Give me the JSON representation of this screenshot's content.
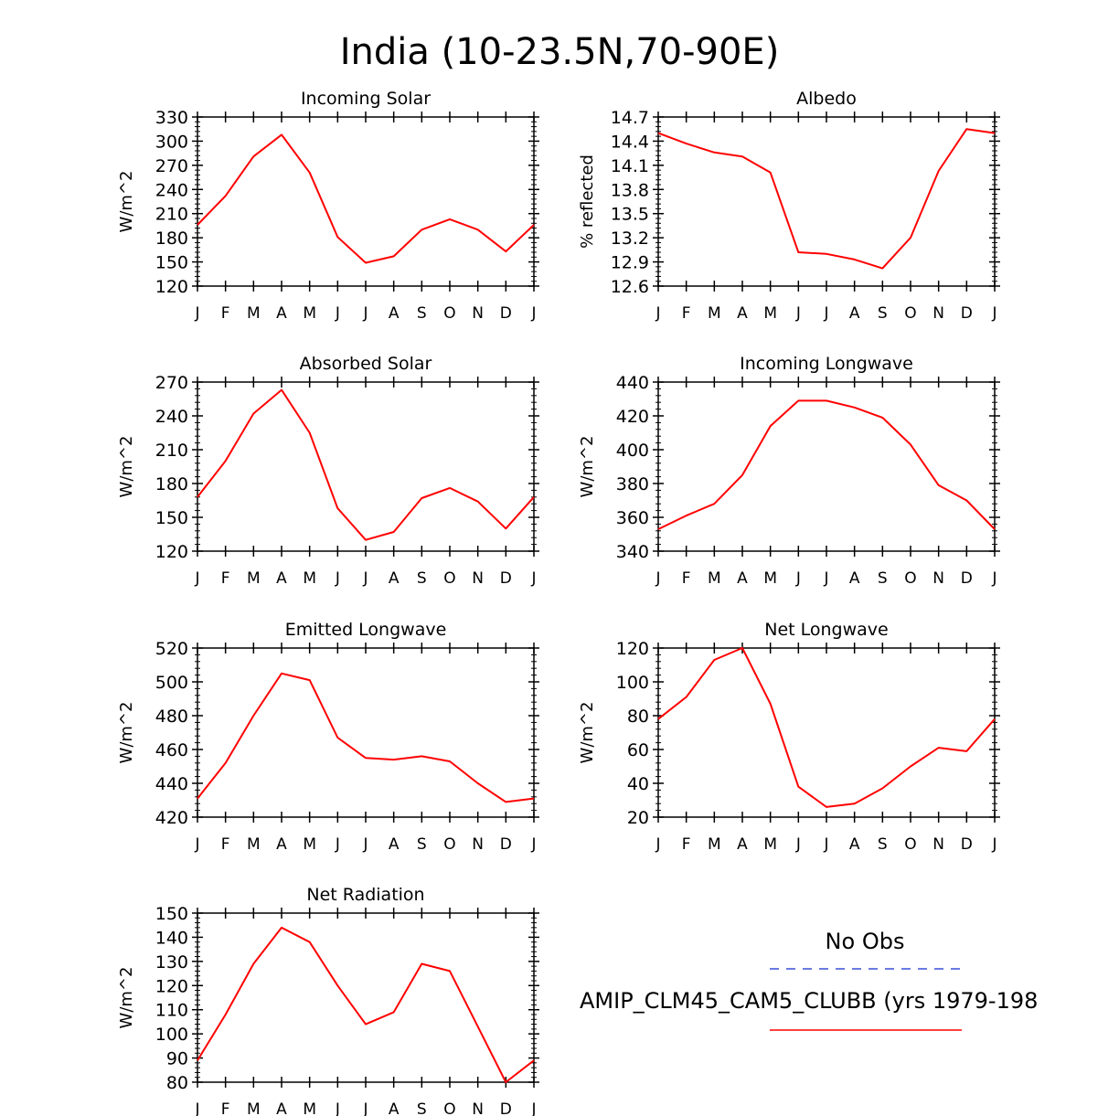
{
  "figure": {
    "title": "India (10-23.5N,70-90E)"
  },
  "legend": {
    "obs_label": "No Obs",
    "obs_color": "#3a4fd8",
    "model_label": "AMIP_CLM45_CAM5_CLUBB (yrs 1979-198",
    "model_color": "#ff0000"
  },
  "chart_data": [
    {
      "id": "incoming-solar",
      "type": "line",
      "title": "Incoming Solar",
      "ylabel": "W/m^2",
      "categories": [
        "J",
        "F",
        "M",
        "A",
        "M",
        "J",
        "J",
        "A",
        "S",
        "O",
        "N",
        "D",
        "J"
      ],
      "ylim": [
        120,
        330
      ],
      "yticks": [
        120,
        150,
        180,
        210,
        240,
        270,
        300,
        330
      ],
      "ytick_labels": [
        "120",
        "150",
        "180",
        "210",
        "240",
        "270",
        "300",
        "330"
      ],
      "series": [
        {
          "name": "AMIP_CLM45_CAM5_CLUBB",
          "color": "#ff0000",
          "values": [
            196,
            232,
            281,
            308,
            261,
            181,
            149,
            157,
            190,
            203,
            190,
            163,
            196
          ]
        }
      ]
    },
    {
      "id": "albedo",
      "type": "line",
      "title": "Albedo",
      "ylabel": "% reflected",
      "categories": [
        "J",
        "F",
        "M",
        "A",
        "M",
        "J",
        "J",
        "A",
        "S",
        "O",
        "N",
        "D",
        "J"
      ],
      "ylim": [
        12.6,
        14.7
      ],
      "yticks": [
        12.6,
        12.9,
        13.2,
        13.5,
        13.8,
        14.1,
        14.4,
        14.7
      ],
      "ytick_labels": [
        "12.6",
        "12.9",
        "13.2",
        "13.5",
        "13.8",
        "14.1",
        "14.4",
        "14.7"
      ],
      "series": [
        {
          "name": "AMIP_CLM45_CAM5_CLUBB",
          "color": "#ff0000",
          "values": [
            14.5,
            14.37,
            14.26,
            14.21,
            14.01,
            13.02,
            13.0,
            12.93,
            12.82,
            13.2,
            14.03,
            14.55,
            14.5
          ]
        }
      ]
    },
    {
      "id": "absorbed-solar",
      "type": "line",
      "title": "Absorbed Solar",
      "ylabel": "W/m^2",
      "categories": [
        "J",
        "F",
        "M",
        "A",
        "M",
        "J",
        "J",
        "A",
        "S",
        "O",
        "N",
        "D",
        "J"
      ],
      "ylim": [
        120,
        270
      ],
      "yticks": [
        120,
        150,
        180,
        210,
        240,
        270
      ],
      "ytick_labels": [
        "120",
        "150",
        "180",
        "210",
        "240",
        "270"
      ],
      "series": [
        {
          "name": "AMIP_CLM45_CAM5_CLUBB",
          "color": "#ff0000",
          "values": [
            168,
            200,
            242,
            263,
            225,
            158,
            130,
            137,
            167,
            176,
            164,
            140,
            168
          ]
        }
      ]
    },
    {
      "id": "incoming-longwave",
      "type": "line",
      "title": "Incoming Longwave",
      "ylabel": "W/m^2",
      "categories": [
        "J",
        "F",
        "M",
        "A",
        "M",
        "J",
        "J",
        "A",
        "S",
        "O",
        "N",
        "D",
        "J"
      ],
      "ylim": [
        340,
        440
      ],
      "yticks": [
        340,
        360,
        380,
        400,
        420,
        440
      ],
      "ytick_labels": [
        "340",
        "360",
        "380",
        "400",
        "420",
        "440"
      ],
      "series": [
        {
          "name": "AMIP_CLM45_CAM5_CLUBB",
          "color": "#ff0000",
          "values": [
            353,
            361,
            368,
            385,
            414,
            429,
            429,
            425,
            419,
            403,
            379,
            370,
            353
          ]
        }
      ]
    },
    {
      "id": "emitted-longwave",
      "type": "line",
      "title": "Emitted Longwave",
      "ylabel": "W/m^2",
      "categories": [
        "J",
        "F",
        "M",
        "A",
        "M",
        "J",
        "J",
        "A",
        "S",
        "O",
        "N",
        "D",
        "J"
      ],
      "ylim": [
        420,
        520
      ],
      "yticks": [
        420,
        440,
        460,
        480,
        500,
        520
      ],
      "ytick_labels": [
        "420",
        "440",
        "460",
        "480",
        "500",
        "520"
      ],
      "series": [
        {
          "name": "AMIP_CLM45_CAM5_CLUBB",
          "color": "#ff0000",
          "values": [
            431,
            452,
            480,
            505,
            501,
            467,
            455,
            454,
            456,
            453,
            440,
            429,
            431
          ]
        }
      ]
    },
    {
      "id": "net-longwave",
      "type": "line",
      "title": "Net Longwave",
      "ylabel": "W/m^2",
      "categories": [
        "J",
        "F",
        "M",
        "A",
        "M",
        "J",
        "J",
        "A",
        "S",
        "O",
        "N",
        "D",
        "J"
      ],
      "ylim": [
        20,
        120
      ],
      "yticks": [
        20,
        40,
        60,
        80,
        100,
        120
      ],
      "ytick_labels": [
        "20",
        "40",
        "60",
        "80",
        "100",
        "120"
      ],
      "series": [
        {
          "name": "AMIP_CLM45_CAM5_CLUBB",
          "color": "#ff0000",
          "values": [
            78,
            91,
            113,
            120,
            87,
            38,
            26,
            28,
            37,
            50,
            61,
            59,
            78
          ]
        }
      ]
    },
    {
      "id": "net-radiation",
      "type": "line",
      "title": "Net Radiation",
      "ylabel": "W/m^2",
      "categories": [
        "J",
        "F",
        "M",
        "A",
        "M",
        "J",
        "J",
        "A",
        "S",
        "O",
        "N",
        "D",
        "J"
      ],
      "ylim": [
        80,
        150
      ],
      "yticks": [
        80,
        90,
        100,
        110,
        120,
        130,
        140,
        150
      ],
      "ytick_labels": [
        "80",
        "90",
        "100",
        "110",
        "120",
        "130",
        "140",
        "150"
      ],
      "series": [
        {
          "name": "AMIP_CLM45_CAM5_CLUBB",
          "color": "#ff0000",
          "values": [
            89,
            108,
            129,
            144,
            138,
            120,
            104,
            109,
            129,
            126,
            103,
            80,
            89
          ]
        }
      ]
    }
  ]
}
